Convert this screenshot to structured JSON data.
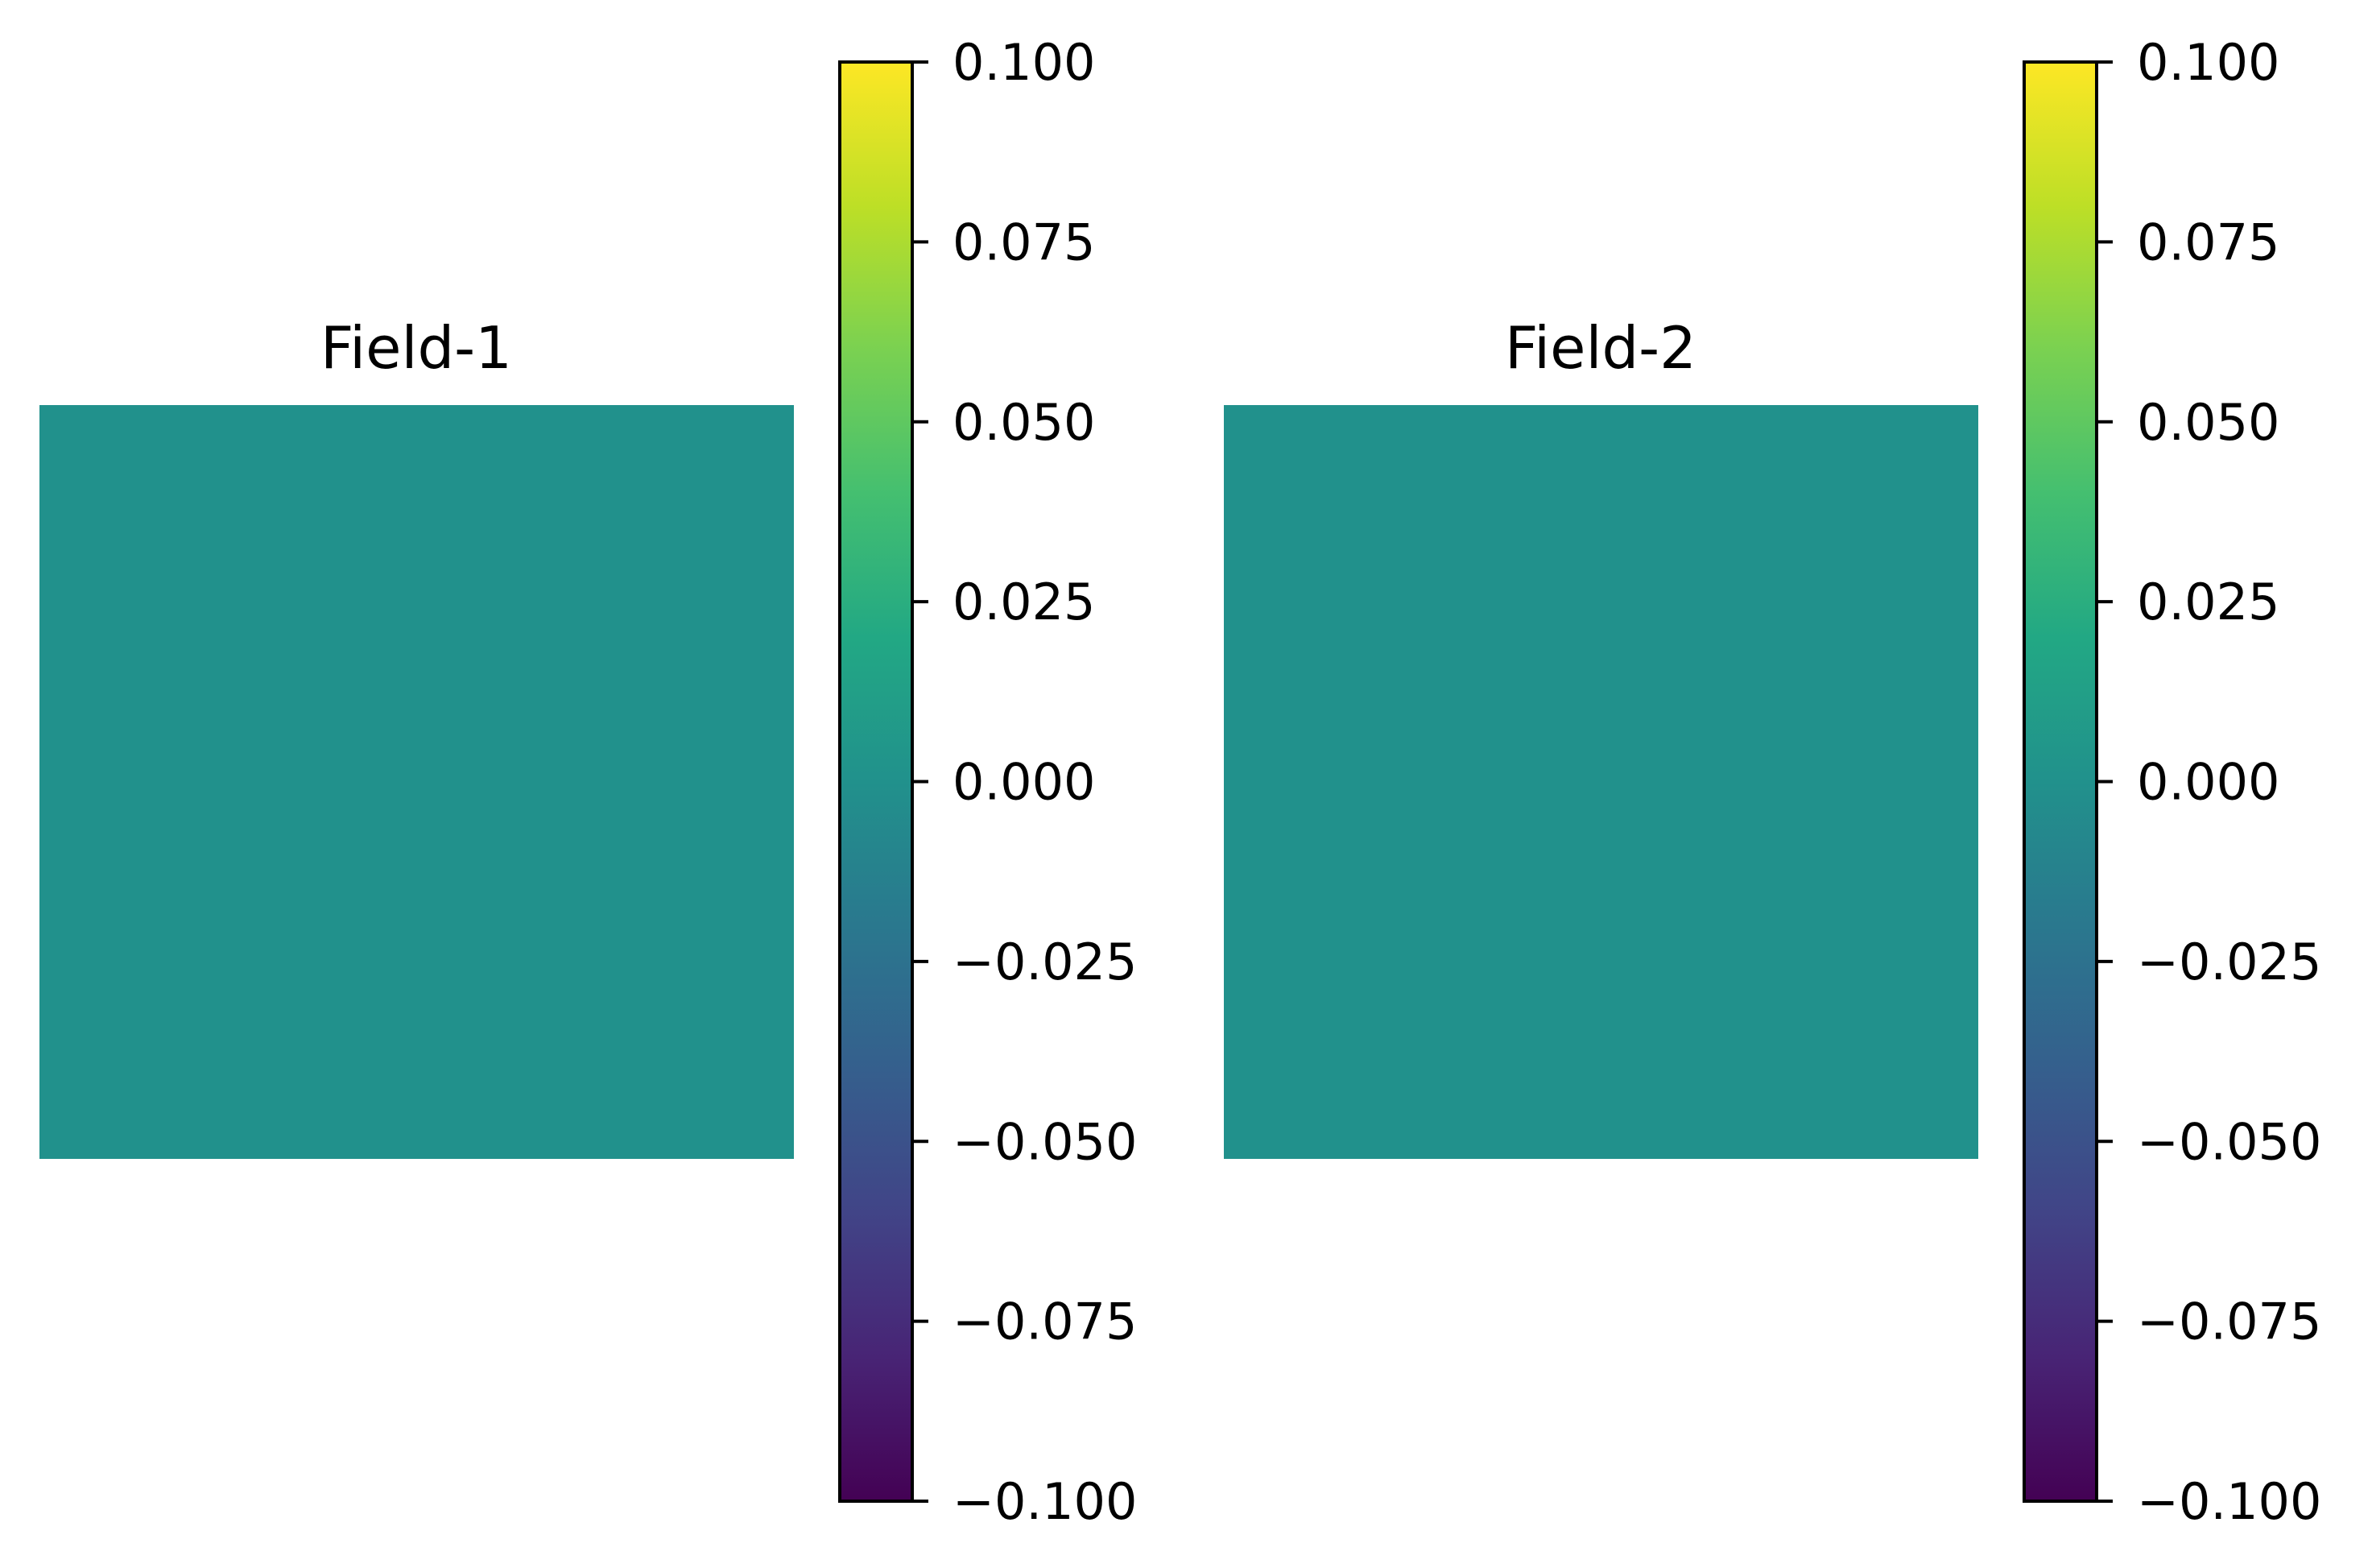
{
  "chart_data": [
    {
      "type": "heatmap",
      "title": "Field-1",
      "values": [
        [
          0.0
        ]
      ],
      "colormap": "viridis",
      "colorbar": {
        "vmin": -0.1,
        "vmax": 0.1,
        "ticks": [
          0.1,
          0.075,
          0.05,
          0.025,
          0.0,
          -0.025,
          -0.05,
          -0.075,
          -0.1
        ],
        "tick_labels": [
          "0.100",
          "0.075",
          "0.050",
          "0.025",
          "0.000",
          "−0.025",
          "−0.050",
          "−0.075",
          "−0.100"
        ]
      },
      "axes_visible": false
    },
    {
      "type": "heatmap",
      "title": "Field-2",
      "values": [
        [
          0.0
        ]
      ],
      "colormap": "viridis",
      "colorbar": {
        "vmin": -0.1,
        "vmax": 0.1,
        "ticks": [
          0.1,
          0.075,
          0.05,
          0.025,
          0.0,
          -0.025,
          -0.05,
          -0.075,
          -0.1
        ],
        "tick_labels": [
          "0.100",
          "0.075",
          "0.050",
          "0.025",
          "0.000",
          "−0.025",
          "−0.050",
          "−0.075",
          "−0.100"
        ]
      },
      "axes_visible": false
    }
  ]
}
